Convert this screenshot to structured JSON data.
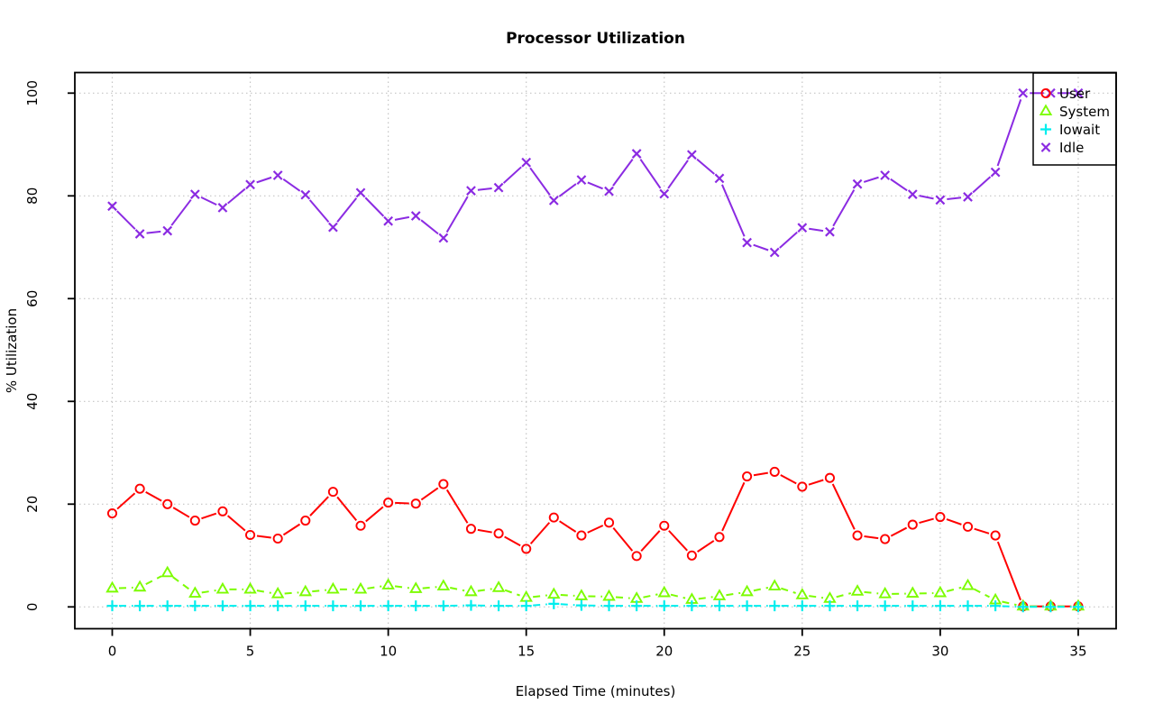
{
  "chart_data": {
    "type": "line",
    "title": "Processor Utilization",
    "xlabel": "Elapsed Time (minutes)",
    "ylabel": "% Utilization",
    "xlim": [
      0,
      35
    ],
    "ylim": [
      0,
      100
    ],
    "x_ticks": [
      0,
      5,
      10,
      15,
      20,
      25,
      30,
      35
    ],
    "y_ticks": [
      0,
      20,
      40,
      60,
      80,
      100
    ],
    "grid": true,
    "grid_style": "dotted",
    "grid_color": "#c4c4c4",
    "axis_color": "#000000",
    "background_color": "#ffffff",
    "legend_position": "topright",
    "x": [
      0,
      1,
      2,
      3,
      4,
      5,
      6,
      7,
      8,
      9,
      10,
      11,
      12,
      13,
      14,
      15,
      16,
      17,
      18,
      19,
      20,
      21,
      22,
      23,
      24,
      25,
      26,
      27,
      28,
      29,
      30,
      31,
      32,
      33,
      34,
      35
    ],
    "series": [
      {
        "name": "User",
        "color": "#ff0000",
        "marker": "circle",
        "line_style": "solid",
        "values": [
          18.2,
          23.0,
          20.0,
          16.8,
          18.6,
          14.0,
          13.3,
          16.8,
          22.4,
          15.8,
          20.3,
          20.1,
          23.9,
          15.2,
          14.3,
          11.3,
          17.4,
          13.9,
          16.4,
          9.9,
          15.8,
          10.0,
          13.6,
          25.4,
          26.3,
          23.4,
          25.1,
          13.9,
          13.2,
          16.0,
          17.5,
          15.6,
          13.9,
          0.1,
          0.1,
          0.1
        ]
      },
      {
        "name": "System",
        "color": "#7cfc00",
        "marker": "triangle",
        "line_style": "dashed",
        "values": [
          3.6,
          3.8,
          6.6,
          2.6,
          3.4,
          3.4,
          2.5,
          2.9,
          3.4,
          3.4,
          4.2,
          3.5,
          4.0,
          2.9,
          3.7,
          1.8,
          2.4,
          2.1,
          2.0,
          1.6,
          2.7,
          1.4,
          2.1,
          2.9,
          4.0,
          2.3,
          1.6,
          3.0,
          2.5,
          2.6,
          2.7,
          4.1,
          1.3,
          0.1,
          0.1,
          0.1
        ]
      },
      {
        "name": "Iowait",
        "color": "#00eeee",
        "marker": "plus",
        "line_style": "dashed",
        "values": [
          0.2,
          0.2,
          0.2,
          0.2,
          0.2,
          0.2,
          0.2,
          0.2,
          0.2,
          0.2,
          0.2,
          0.2,
          0.2,
          0.3,
          0.2,
          0.2,
          0.6,
          0.3,
          0.2,
          0.2,
          0.2,
          0.2,
          0.2,
          0.2,
          0.2,
          0.2,
          0.2,
          0.2,
          0.2,
          0.2,
          0.2,
          0.2,
          0.2,
          0.0,
          0.0,
          0.0
        ]
      },
      {
        "name": "Idle",
        "color": "#8b2be2",
        "marker": "x",
        "line_style": "solid",
        "values": [
          78.0,
          72.6,
          73.2,
          80.3,
          77.7,
          82.2,
          84.0,
          80.2,
          73.9,
          80.6,
          75.1,
          76.1,
          71.8,
          81.0,
          81.6,
          86.5,
          79.1,
          83.1,
          80.9,
          88.2,
          80.4,
          88.0,
          83.4,
          70.9,
          69.0,
          73.8,
          73.0,
          82.3,
          84.0,
          80.3,
          79.2,
          79.8,
          84.6,
          100.0,
          100.0,
          100.0
        ]
      }
    ],
    "legend_entries": [
      "User",
      "System",
      "Iowait",
      "Idle"
    ]
  }
}
